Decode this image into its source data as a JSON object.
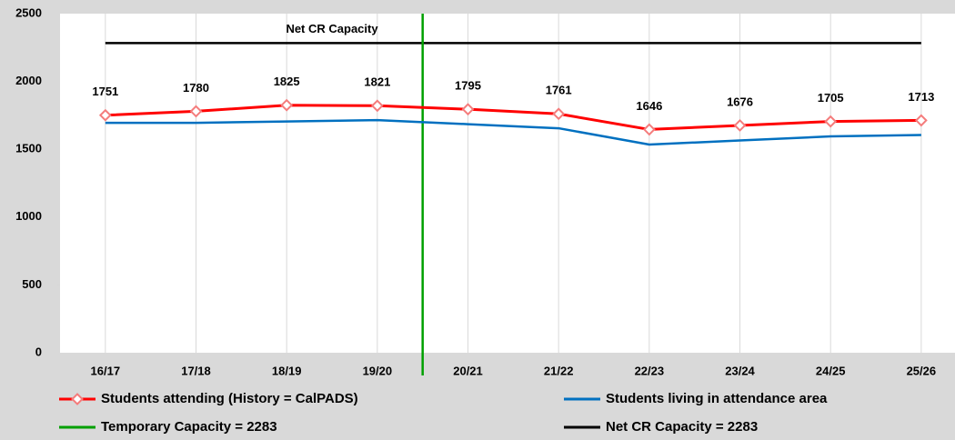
{
  "chart_data": {
    "type": "line",
    "categories": [
      "16/17",
      "17/18",
      "18/19",
      "19/20",
      "20/21",
      "21/22",
      "22/23",
      "23/24",
      "24/25",
      "25/26"
    ],
    "series": [
      {
        "name": "Students attending (History = CalPADS)",
        "color": "#ff0000",
        "marker": "diamond",
        "data_labels": true,
        "values": [
          1751,
          1780,
          1825,
          1821,
          1795,
          1761,
          1646,
          1676,
          1705,
          1713
        ]
      },
      {
        "name": "Students living in attendance area",
        "color": "#0070c0",
        "values": [
          1695,
          1695,
          1705,
          1715,
          1685,
          1655,
          1535,
          1565,
          1595,
          1605
        ]
      }
    ],
    "reference_lines": [
      {
        "name": "Net CR Capacity = 2283",
        "label": "Net CR Capacity",
        "value": 2283,
        "color": "#000000"
      }
    ],
    "vertical_lines": [
      {
        "name": "Temporary Capacity = 2283",
        "after_category": "19/20",
        "color": "#00a000"
      }
    ],
    "ylim": [
      0,
      2500
    ],
    "yticks": [
      0,
      500,
      1000,
      1500,
      2000,
      2500
    ],
    "grid": "x"
  }
}
